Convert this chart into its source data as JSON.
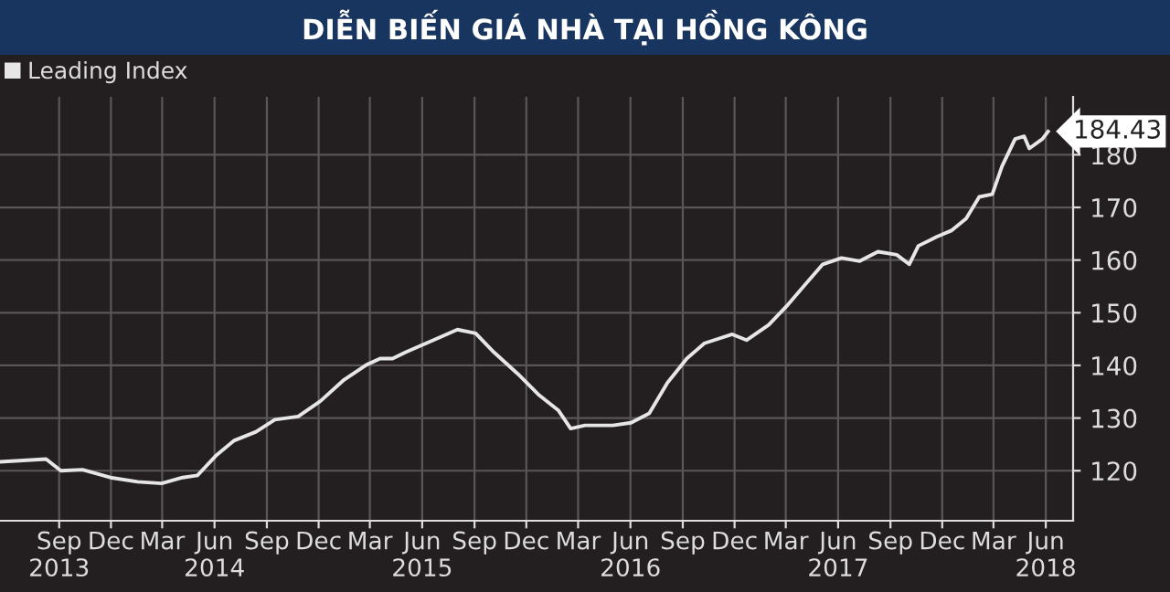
{
  "chart_data": {
    "type": "line",
    "title": "DIỄN BIẾN GIÁ NHÀ TẠI HỒNG KÔNG",
    "x": [
      "2013-05-20",
      "2013-08-09",
      "2013-09-04",
      "2013-10-12",
      "2013-11-30",
      "2014-01-17",
      "2014-02-28",
      "2014-04-06",
      "2014-05-02",
      "2014-06-03",
      "2014-07-05",
      "2014-08-13",
      "2014-09-15",
      "2014-10-26",
      "2014-12-04",
      "2015-01-15",
      "2015-02-23",
      "2015-03-19",
      "2015-04-10",
      "2015-05-03",
      "2015-06-08",
      "2015-07-01",
      "2015-08-02",
      "2015-09-03",
      "2015-10-05",
      "2015-11-16",
      "2015-12-24",
      "2016-01-26",
      "2016-02-17",
      "2016-03-13",
      "2016-05-01",
      "2016-06-02",
      "2016-07-04",
      "2016-08-05",
      "2016-09-08",
      "2016-10-09",
      "2016-11-27",
      "2016-12-22",
      "2017-01-30",
      "2017-03-02",
      "2017-04-03",
      "2017-05-05",
      "2017-06-07",
      "2017-07-09",
      "2017-08-10",
      "2017-09-12",
      "2017-10-04",
      "2017-10-20",
      "2017-11-21",
      "2017-12-17",
      "2018-01-12",
      "2018-02-04",
      "2018-02-27",
      "2018-03-16",
      "2018-04-08",
      "2018-04-24",
      "2018-05-03",
      "2018-05-26",
      "2018-06-05"
    ],
    "series": [
      {
        "name": "Leading Index",
        "color": "#e6e6e6",
        "values": [
          121.7,
          122.2,
          120.0,
          120.2,
          118.7,
          117.9,
          117.6,
          118.7,
          119.1,
          122.8,
          125.7,
          127.4,
          129.7,
          130.3,
          133.2,
          137.3,
          140.1,
          141.3,
          141.3,
          142.5,
          144.2,
          145.3,
          146.8,
          146.1,
          142.5,
          138.4,
          134.3,
          131.5,
          128.0,
          128.6,
          128.6,
          129.1,
          130.9,
          136.7,
          141.3,
          144.2,
          145.9,
          144.8,
          147.7,
          151.2,
          155.2,
          159.2,
          160.4,
          159.8,
          161.6,
          161.0,
          159.2,
          162.7,
          164.4,
          165.6,
          167.9,
          172.0,
          172.5,
          177.8,
          183.0,
          183.5,
          181.2,
          183.0,
          184.43
        ]
      }
    ],
    "annotations": [
      {
        "text": "184.43",
        "x": "2018-06-05",
        "y": 184.43
      }
    ],
    "xlim": [
      "2013-05-20",
      "2018-07-19"
    ],
    "xticks": [
      {
        "value": "2013-09-01",
        "label": "Sep\n2013"
      },
      {
        "value": "2013-12-01",
        "label": "Dec"
      },
      {
        "value": "2014-03-01",
        "label": "Mar"
      },
      {
        "value": "2014-06-01",
        "label": "Jun\n2014"
      },
      {
        "value": "2014-09-01",
        "label": "Sep"
      },
      {
        "value": "2014-12-01",
        "label": "Dec"
      },
      {
        "value": "2015-03-01",
        "label": "Mar"
      },
      {
        "value": "2015-06-01",
        "label": "Jun\n2015"
      },
      {
        "value": "2015-09-01",
        "label": "Sep"
      },
      {
        "value": "2015-12-01",
        "label": "Dec"
      },
      {
        "value": "2016-03-01",
        "label": "Mar"
      },
      {
        "value": "2016-06-01",
        "label": "Jun\n2016"
      },
      {
        "value": "2016-09-01",
        "label": "Sep"
      },
      {
        "value": "2016-12-01",
        "label": "Dec"
      },
      {
        "value": "2017-03-01",
        "label": "Mar"
      },
      {
        "value": "2017-06-01",
        "label": "Jun\n2017"
      },
      {
        "value": "2017-09-01",
        "label": "Sep"
      },
      {
        "value": "2017-12-01",
        "label": "Dec"
      },
      {
        "value": "2018-03-01",
        "label": "Mar"
      },
      {
        "value": "2018-06-01",
        "label": "Jun\n2018"
      }
    ],
    "ylim": [
      110.5,
      191
    ],
    "yticks": [
      120,
      130,
      140,
      150,
      160,
      170,
      180
    ],
    "grid": true,
    "legend": "top left",
    "marker": "none",
    "line_style": "solid"
  }
}
